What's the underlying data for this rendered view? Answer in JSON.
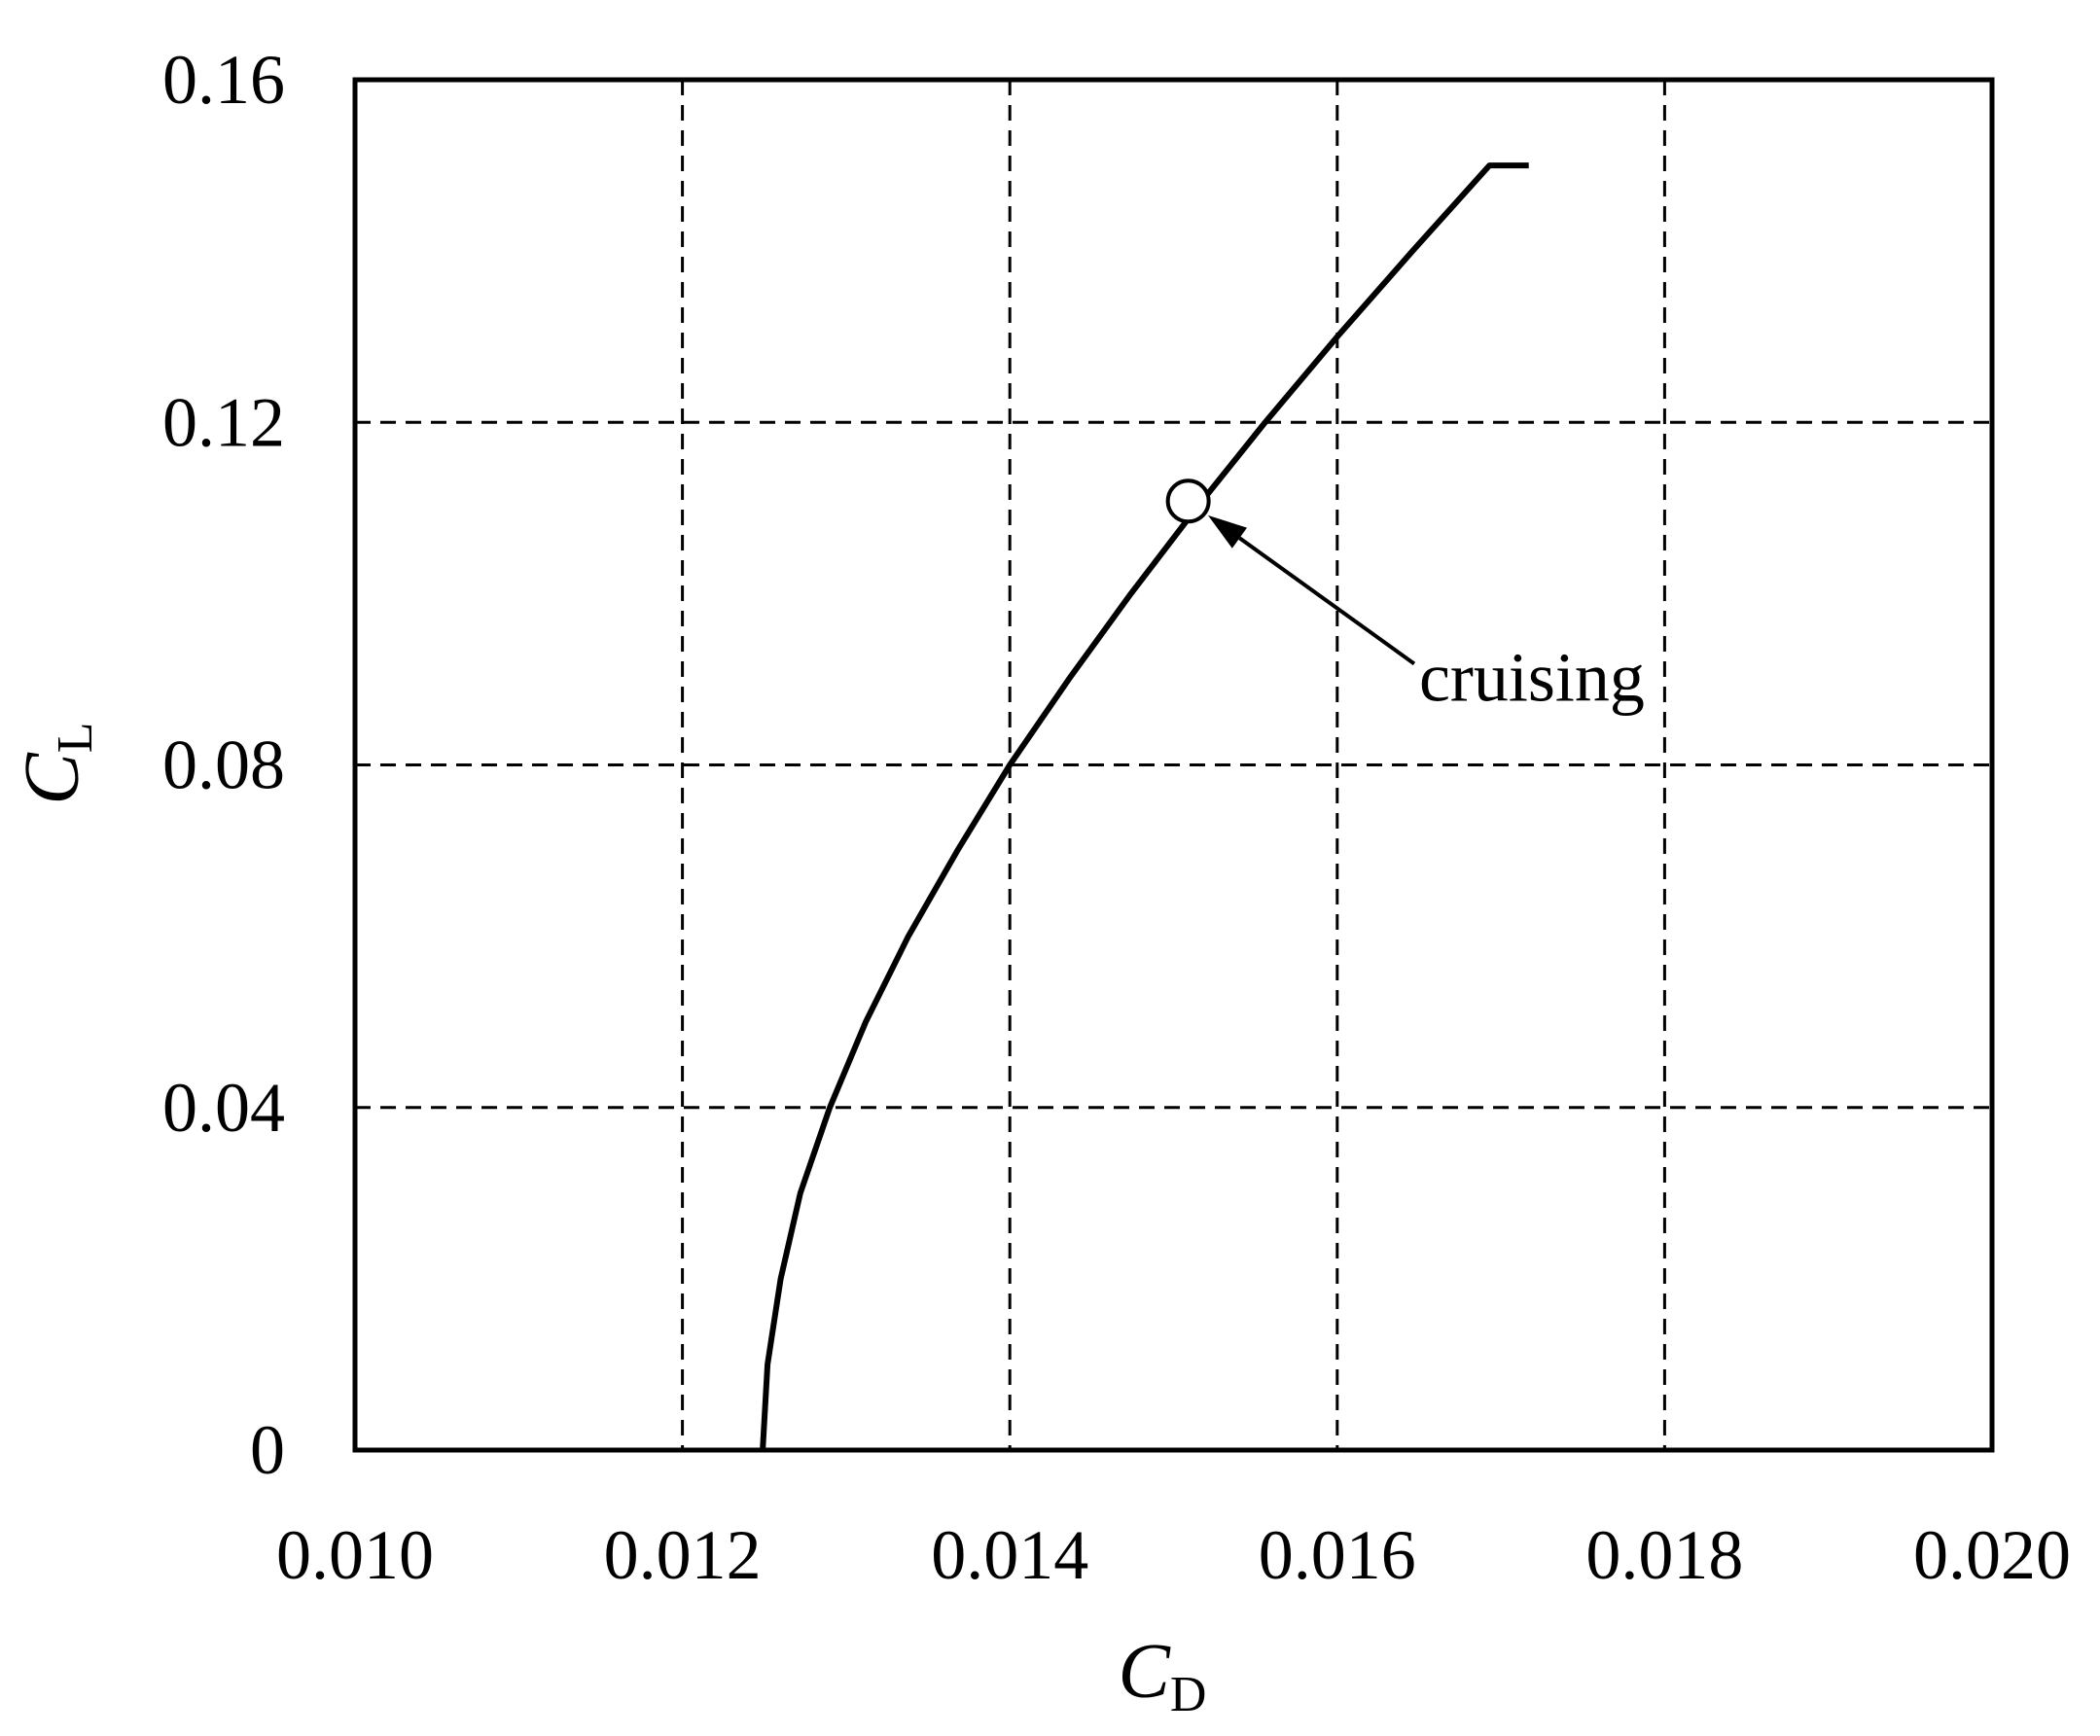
{
  "chart_data": {
    "type": "line",
    "xlabel": {
      "main": "C",
      "sub": "D"
    },
    "ylabel": {
      "main": "C",
      "sub": "L"
    },
    "xlim": [
      0.01,
      0.02
    ],
    "ylim": [
      0,
      0.16
    ],
    "xticks": [
      0.01,
      0.012,
      0.014,
      0.016,
      0.018,
      0.02
    ],
    "xtick_labels": [
      "0.010",
      "0.012",
      "0.014",
      "0.016",
      "0.018",
      "0.020"
    ],
    "yticks": [
      0,
      0.04,
      0.08,
      0.12,
      0.16
    ],
    "ytick_labels": [
      "0",
      "0.04",
      "0.08",
      "0.12",
      "0.16"
    ],
    "grid": true,
    "grid_style": "dashed",
    "series": [
      {
        "color": "#000000",
        "x": [
          0.01249,
          0.01252,
          0.0126,
          0.01272,
          0.0129,
          0.01312,
          0.01338,
          0.01368,
          0.014,
          0.01436,
          0.01474,
          0.01514,
          0.01556,
          0.016,
          0.01646,
          0.01693,
          0.01717
        ],
        "y": [
          0.0,
          0.01,
          0.02,
          0.03,
          0.04,
          0.05,
          0.06,
          0.07,
          0.08,
          0.09,
          0.1,
          0.11,
          0.12,
          0.13,
          0.14,
          0.15,
          0.15
        ]
      }
    ],
    "annotations": [
      {
        "text": "cruising",
        "point": {
          "x": 0.01509,
          "y": 0.1108
        },
        "text_at": {
          "x": 0.0165,
          "y": 0.0875
        }
      }
    ]
  }
}
